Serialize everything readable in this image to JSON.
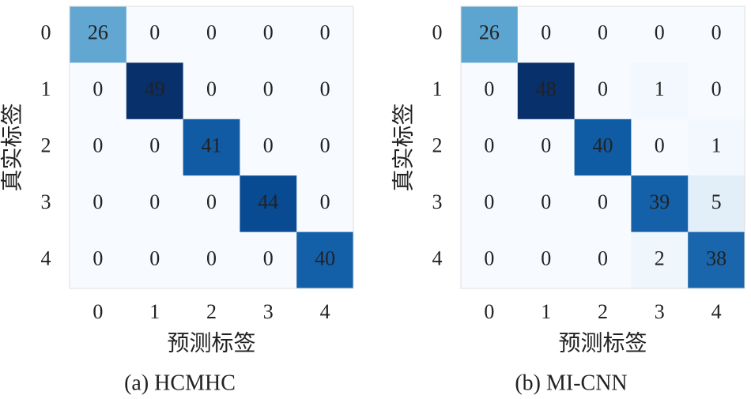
{
  "chart_data": [
    {
      "type": "heatmap",
      "caption": "(a) HCMHC",
      "xlabel": "预测标签",
      "ylabel": "真实标签",
      "x_categories": [
        "0",
        "1",
        "2",
        "3",
        "4"
      ],
      "y_categories": [
        "0",
        "1",
        "2",
        "3",
        "4"
      ],
      "colormap": "Blues",
      "values": [
        [
          26,
          0,
          0,
          0,
          0
        ],
        [
          0,
          49,
          0,
          0,
          0
        ],
        [
          0,
          0,
          41,
          0,
          0
        ],
        [
          0,
          0,
          0,
          44,
          0
        ],
        [
          0,
          0,
          0,
          0,
          40
        ]
      ]
    },
    {
      "type": "heatmap",
      "caption": "(b) MI-CNN",
      "xlabel": "预测标签",
      "ylabel": "真实标签",
      "x_categories": [
        "0",
        "1",
        "2",
        "3",
        "4"
      ],
      "y_categories": [
        "0",
        "1",
        "2",
        "3",
        "4"
      ],
      "colormap": "Blues",
      "values": [
        [
          26,
          0,
          0,
          0,
          0
        ],
        [
          0,
          48,
          0,
          1,
          0
        ],
        [
          0,
          0,
          40,
          0,
          1
        ],
        [
          0,
          0,
          0,
          39,
          5
        ],
        [
          0,
          0,
          0,
          2,
          38
        ]
      ]
    }
  ]
}
